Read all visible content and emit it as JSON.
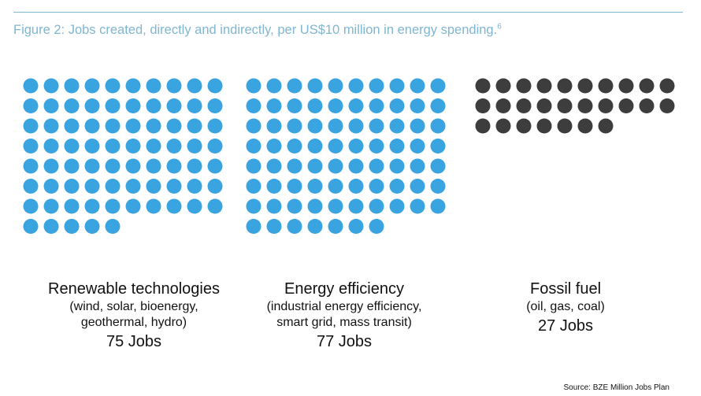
{
  "title": "Figure 2: Jobs created, directly and indirectly, per US$10 million in energy spending.",
  "title_footnote": "6",
  "source": "Source: BZE Million Jobs Plan",
  "colors": {
    "renewable": "#3aa4e0",
    "efficiency": "#3aa4e0",
    "fossil": "#3d3d3d",
    "title": "#7fb6d1"
  },
  "chart_data": {
    "type": "pictogram",
    "unit": "Jobs",
    "panels": [
      {
        "name": "Renewable technologies",
        "sub": "(wind, solar, bioenergy,\ngeothermal, hydro)",
        "jobs_label": "75 Jobs",
        "value": 75,
        "color": "#3aa4e0"
      },
      {
        "name": "Energy efficiency",
        "sub": "(industrial energy efficiency,\nsmart grid, mass transit)",
        "jobs_label": "77 Jobs",
        "value": 77,
        "color": "#3aa4e0"
      },
      {
        "name": "Fossil fuel",
        "sub": "(oil, gas, coal)",
        "jobs_label": "27 Jobs",
        "value": 27,
        "color": "#3d3d3d"
      }
    ]
  }
}
